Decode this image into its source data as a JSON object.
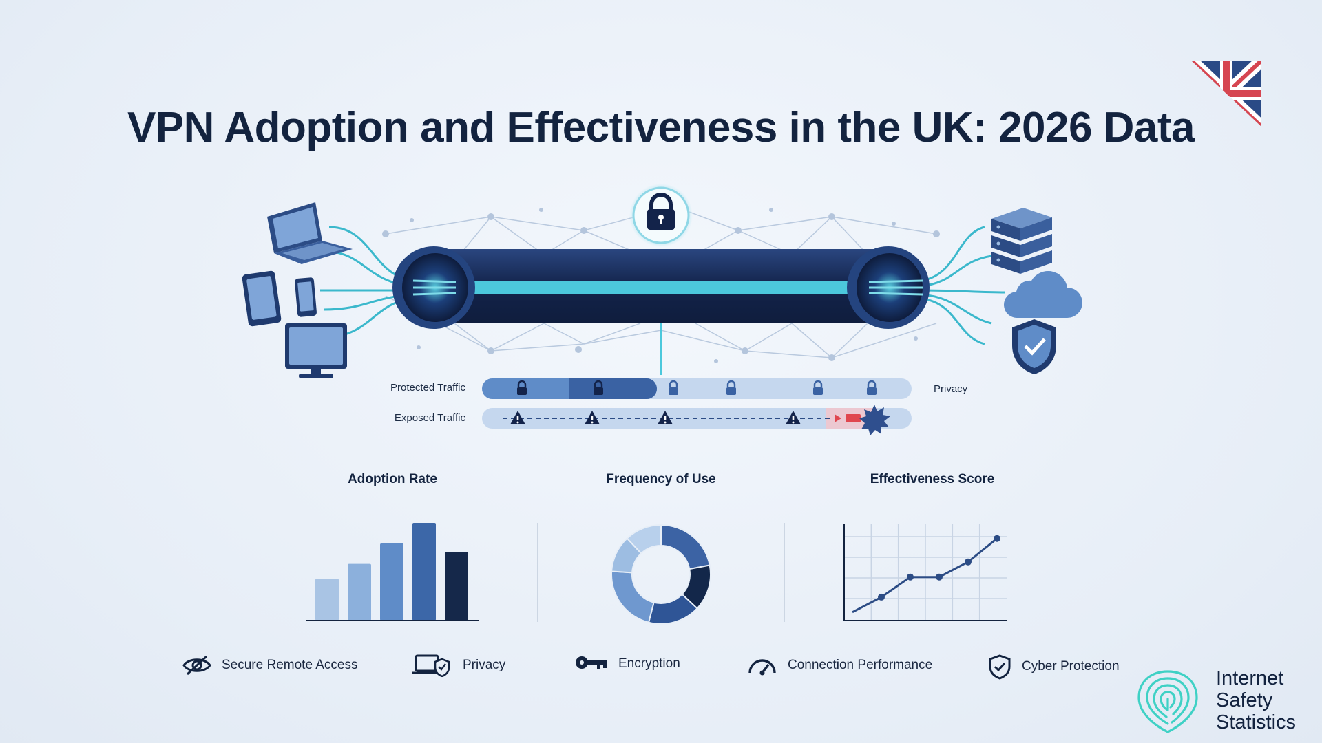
{
  "header": {
    "title": "VPN Adoption and Effectiveness in the UK: 2026 Data"
  },
  "diagram": {
    "protected_label": "Protected Traffic",
    "exposed_label": "Exposed Traffic",
    "privacy_label": "Privacy",
    "icons": [
      "laptop-icon",
      "tablet-icon",
      "phone-icon",
      "monitor-icon",
      "lock-icon",
      "server-icon",
      "cloud-icon",
      "shield-check-icon",
      "warning-icon",
      "burst-icon"
    ]
  },
  "charts": {
    "adoption_title": "Adoption Rate",
    "frequency_title": "Frequency of Use",
    "effectiveness_title": "Effectiveness Score"
  },
  "chart_data": [
    {
      "type": "bar",
      "title": "Adoption Rate",
      "categories": [
        "",
        "",
        "",
        "",
        ""
      ],
      "values": [
        43,
        58,
        79,
        100,
        70
      ],
      "colors": [
        "#a9c4e4",
        "#8cb0dc",
        "#5f8cc8",
        "#3c67a8",
        "#15284a"
      ]
    },
    {
      "type": "pie",
      "title": "Frequency of Use",
      "values": [
        22,
        15,
        17,
        22,
        12,
        12
      ],
      "colors": [
        "#3c63a4",
        "#13274a",
        "#2f5596",
        "#6f98cf",
        "#9dbde2",
        "#b8d0ec"
      ]
    },
    {
      "type": "line",
      "title": "Effectiveness Score",
      "x": [
        1,
        2,
        3,
        4,
        5,
        6
      ],
      "values": [
        10,
        28,
        52,
        52,
        70,
        98
      ],
      "ylim": [
        0,
        115
      ],
      "grid": true
    }
  ],
  "features": [
    {
      "label": "Secure Remote Access",
      "icon": "eye-slash-icon"
    },
    {
      "label": "Privacy",
      "icon": "laptop-shield-icon"
    },
    {
      "label": "Encryption",
      "icon": "key-icon"
    },
    {
      "label": "Connection Performance",
      "icon": "speedometer-icon"
    },
    {
      "label": "Cyber Protection",
      "icon": "shield-check-icon"
    }
  ],
  "brand": {
    "line1": "Internet",
    "line2": "Safety",
    "line3": "Statistics",
    "icon": "fingerprint-icon"
  },
  "colors": {
    "navy": "#13233f",
    "tunnel": "#1b2f5a",
    "teal": "#45c3d6",
    "accent_red": "#e0464e",
    "brand_teal": "#3fd1c5"
  }
}
